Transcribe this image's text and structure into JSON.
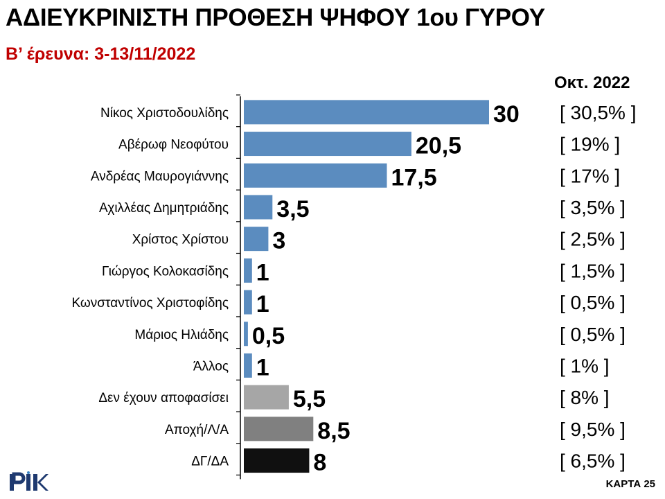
{
  "header": {
    "title": "ΑΔΙΕΥΚΡΙΝΙΣΤΗ ΠΡΟΘΕΣΗ ΨΗΦΟΥ 1ου ΓΥΡΟΥ",
    "subtitle": "Β’ έρευνα: 3-13/11/2022"
  },
  "comparison": {
    "header": "Οκτ. 2022"
  },
  "footer": {
    "label": "ΚΑΡΤΑ 25",
    "logo_text": "RIK"
  },
  "colors": {
    "candidate": "#5b8cbf",
    "undecided": "#a6a6a6",
    "abstain": "#808080",
    "blank": "#101010",
    "subtitle": "#c00000"
  },
  "chart_data": {
    "type": "bar",
    "orientation": "horizontal",
    "title": "ΑΔΙΕΥΚΡΙΝΙΣΤΗ ΠΡΟΘΕΣΗ ΨΗΦΟΥ 1ου ΓΥΡΟΥ",
    "subtitle": "Β’ έρευνα: 3-13/11/2022",
    "xlim": [
      0,
      30
    ],
    "grid": false,
    "categories": [
      "Νίκος Χριστοδουλίδης",
      "Αβέρωφ Νεοφύτου",
      "Ανδρέας Μαυρογιάννης",
      "Αχιλλέας Δημητριάδης",
      "Χρίστος Χρίστου",
      "Γιώργος Κολοκασίδης",
      "Κωνσταντίνος Χριστοφίδης",
      "Μάριος Ηλιάδης",
      "Άλλος",
      "Δεν έχουν αποφασίσει",
      "Αποχή/Λ/Α",
      "ΔΓ/ΔΑ"
    ],
    "values": [
      30,
      20.5,
      17.5,
      3.5,
      3,
      1,
      1,
      0.5,
      1,
      5.5,
      8.5,
      8
    ],
    "value_labels": [
      "30",
      "20,5",
      "17,5",
      "3,5",
      "3",
      "1",
      "1",
      "0,5",
      "1",
      "5,5",
      "8,5",
      "8"
    ],
    "bar_colors": [
      "#5b8cbf",
      "#5b8cbf",
      "#5b8cbf",
      "#5b8cbf",
      "#5b8cbf",
      "#5b8cbf",
      "#5b8cbf",
      "#5b8cbf",
      "#5b8cbf",
      "#a6a6a6",
      "#808080",
      "#101010"
    ],
    "previous_header": "Οκτ. 2022",
    "previous_labels": [
      "[ 30,5% ]",
      "[ 19% ]",
      "[ 17% ]",
      "[ 3,5% ]",
      "[ 2,5% ]",
      "[ 1,5% ]",
      "[ 0,5% ]",
      "[ 0,5% ]",
      "[ 1% ]",
      "[ 8% ]",
      "[ 9,5% ]",
      "[ 6,5% ]"
    ]
  }
}
